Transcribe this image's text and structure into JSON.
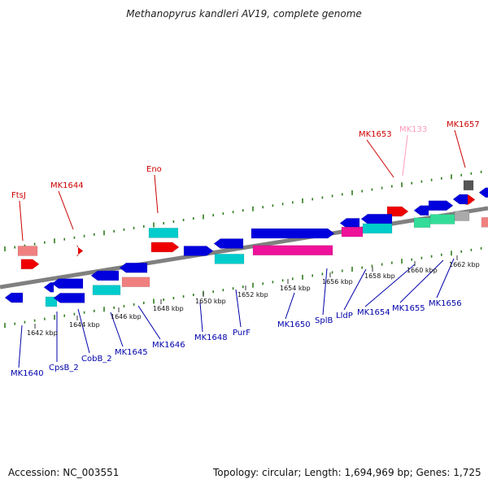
{
  "title": "Methanopyrus kandleri AV19, complete genome",
  "footer": {
    "accession": "Accession: NC_003551",
    "summary": "Topology: circular; Length: 1,694,969 bp; Genes: 1,725"
  },
  "colors": {
    "backbone": "#808080",
    "tick": "#2e7d1e",
    "label_blue": "#0000aa",
    "label_red": "#cc0000",
    "label_pink": "#ff99bb",
    "gene_blue": "#0000dd",
    "gene_red": "#ee0000",
    "gene_cyan": "#00cccc",
    "gene_pink": "#ee1199",
    "gene_salmon": "#f08080",
    "gene_green": "#33dd99",
    "gene_gray": "#aaaaaa",
    "gene_dark": "#555555"
  },
  "kbp_labels": [
    {
      "text": "1642 kbp"
    },
    {
      "text": "1644 kbp"
    },
    {
      "text": "1646 kbp"
    },
    {
      "text": "1648 kbp"
    },
    {
      "text": "1650 kbp"
    },
    {
      "text": "1652 kbp"
    },
    {
      "text": "1654 kbp"
    },
    {
      "text": "1656 kbp"
    },
    {
      "text": "1658 kbp"
    },
    {
      "text": "1660 kbp"
    },
    {
      "text": "1662 kbp"
    }
  ],
  "top_labels": [
    {
      "text": "FtsJ"
    },
    {
      "text": "MK1644"
    },
    {
      "text": "Eno"
    },
    {
      "text": "MK1653"
    },
    {
      "text": "MK133"
    },
    {
      "text": "MK1657"
    }
  ],
  "bottom_labels": [
    {
      "text": "MK1640"
    },
    {
      "text": "CpsB_2"
    },
    {
      "text": "CobB_2"
    },
    {
      "text": "MK1645"
    },
    {
      "text": "MK1646"
    },
    {
      "text": "MK1648"
    },
    {
      "text": "PurF"
    },
    {
      "text": "MK1650"
    },
    {
      "text": "SplB"
    },
    {
      "text": "LldP"
    },
    {
      "text": "MK1654"
    },
    {
      "text": "MK1655"
    },
    {
      "text": "MK1656"
    }
  ]
}
